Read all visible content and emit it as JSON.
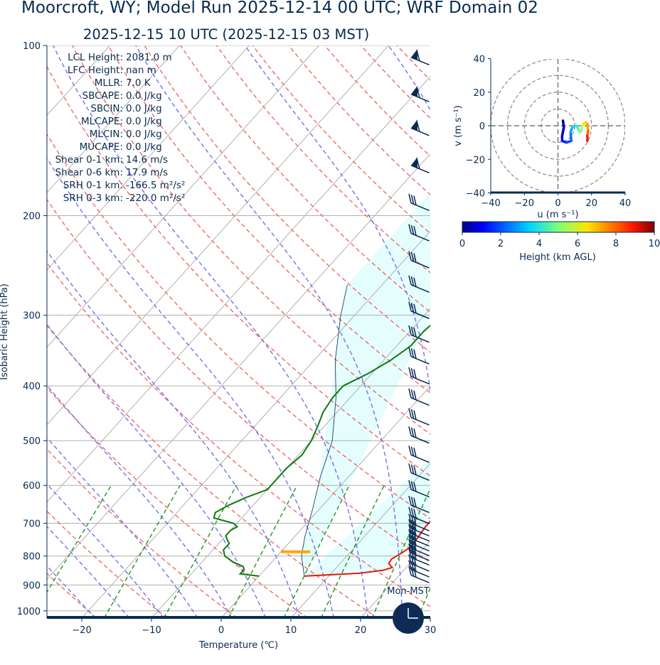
{
  "header": {
    "title": "Moorcroft, WY; Model Run 2025-12-14 00 UTC; WRF Domain 02",
    "subtitle": "2025-12-15 10 UTC  (2025-12-15 03 MST)"
  },
  "stats": [
    {
      "label": "LCL Height:",
      "value": "2081.0 m"
    },
    {
      "label": "LFC Height:",
      "value": "nan m"
    },
    {
      "label": "MLLR:",
      "value": "7.0 K"
    },
    {
      "label": "SBCAPE:",
      "value": "0.0 J/kg"
    },
    {
      "label": "SBCIN:",
      "value": "0.0 J/kg"
    },
    {
      "label": "MLCAPE:",
      "value": "0.0 J/kg"
    },
    {
      "label": "MLCIN:",
      "value": "0.0 J/kg"
    },
    {
      "label": "MUCAPE:",
      "value": "0.0 J/kg"
    },
    {
      "label": "Shear 0-1 km:",
      "value": "14.6 m/s"
    },
    {
      "label": "Shear 0-6 km:",
      "value": "17.9 m/s"
    },
    {
      "label": "SRH 0-1 km:",
      "value": "-166.5 m²/s²"
    },
    {
      "label": "SRH 0-3 km:",
      "value": "-220.0 m²/s²"
    }
  ],
  "clock": {
    "label": "Mon-MST",
    "icon": "clock-icon"
  },
  "colors": {
    "navy": "#0a2a50",
    "temperature": "#e8160c",
    "dewpoint": "#0e7a0e",
    "dry_adiabat": "#ef6a6a",
    "moist_adiabat": "#7272ee",
    "mixing_ratio": "#2c9c2c",
    "isotherm": "#b0b0b0",
    "cape_shade": "#e4fdfd",
    "lcl_marker": "#ffa500"
  },
  "chart_data": [
    {
      "type": "line",
      "name": "skew-t",
      "xlabel": "Temperature (℃)",
      "ylabel": "Isobaric Height (hPa)",
      "xlim": [
        -25,
        30
      ],
      "ylim": [
        1030,
        100
      ],
      "log_y": true,
      "x_ticks": [
        -20,
        -10,
        0,
        10,
        20,
        30
      ],
      "y_ticks": [
        100,
        200,
        300,
        400,
        500,
        600,
        700,
        800,
        900,
        1000
      ],
      "series": [
        {
          "name": "",
          "role": "temperature",
          "points": [
            [
              6.5,
              868
            ],
            [
              14,
              858
            ],
            [
              17,
              848
            ],
            [
              18,
              838
            ],
            [
              17,
              825
            ],
            [
              16.8,
              810
            ],
            [
              17.5,
              790
            ],
            [
              18,
              770
            ],
            [
              17.7,
              730
            ],
            [
              17.5,
              710
            ],
            [
              17.5,
              690
            ],
            [
              17.5,
              670
            ],
            [
              16,
              650
            ],
            [
              15.5,
              630
            ],
            [
              15,
              610
            ],
            [
              14.5,
              590
            ],
            [
              13,
              560
            ],
            [
              11,
              530
            ],
            [
              9,
              500
            ],
            [
              7,
              470
            ],
            [
              5,
              440
            ],
            [
              3.5,
              400
            ],
            [
              1,
              350
            ],
            [
              -2.5,
              300
            ],
            [
              -4,
              275
            ],
            [
              -5.5,
              250
            ],
            [
              -4.5,
              225
            ],
            [
              -3,
              215
            ],
            [
              -2,
              200
            ],
            [
              3,
              170
            ],
            [
              8,
              150
            ],
            [
              12,
              130
            ],
            [
              14.5,
              115
            ],
            [
              19,
              100
            ]
          ]
        },
        {
          "name": "",
          "role": "dewpoint",
          "points": [
            [
              0,
              868
            ],
            [
              -3,
              860
            ],
            [
              -3,
              845
            ],
            [
              -3.5,
              835
            ],
            [
              -5.5,
              820
            ],
            [
              -7.5,
              800
            ],
            [
              -8.5,
              780
            ],
            [
              -8.5,
              770
            ],
            [
              -8.5,
              760
            ],
            [
              -9.5,
              745
            ],
            [
              -10,
              735
            ],
            [
              -10,
              720
            ],
            [
              -9.5,
              710
            ],
            [
              -10.5,
              700
            ],
            [
              -14,
              685
            ],
            [
              -14.5,
              670
            ],
            [
              -13.5,
              650
            ],
            [
              -12,
              630
            ],
            [
              -10,
              610
            ],
            [
              -10,
              590
            ],
            [
              -10,
              560
            ],
            [
              -9.5,
              530
            ],
            [
              -10,
              500
            ],
            [
              -11,
              470
            ],
            [
              -12,
              445
            ],
            [
              -12.5,
              420
            ],
            [
              -12.5,
              400
            ],
            [
              -10.5,
              380
            ],
            [
              -9,
              360
            ],
            [
              -8,
              340
            ],
            [
              -8,
              320
            ],
            [
              -7.5,
              300
            ],
            [
              -10,
              260
            ],
            [
              -10.5,
              240
            ],
            [
              -11,
              220
            ],
            [
              -11,
              200
            ],
            [
              -11.5,
              180
            ],
            [
              -12,
              165
            ],
            [
              -15,
              150
            ],
            [
              -13,
              135
            ],
            [
              -11,
              120
            ],
            [
              -8.5,
              100
            ]
          ]
        },
        {
          "name": "",
          "role": "parcel",
          "points": [
            [
              -25,
              265
            ],
            [
              -22,
              300
            ],
            [
              -17,
              360
            ],
            [
              -12,
              420
            ],
            [
              -7,
              500
            ],
            [
              -4,
              580
            ],
            [
              -1,
              660
            ],
            [
              1.5,
              740
            ],
            [
              3.5,
              800
            ],
            [
              6.5,
              868
            ]
          ]
        }
      ],
      "lcl": {
        "pressure": 786,
        "t_range": [
          0,
          4.2
        ]
      },
      "wind_barbs": [
        {
          "p": 105,
          "u": -0.4,
          "v": 0.4
        },
        {
          "p": 122,
          "u": -0.4,
          "v": 0.4
        },
        {
          "p": 140,
          "u": -0.4,
          "v": 0.4
        },
        {
          "p": 163,
          "u": -0.4,
          "v": 0.4
        },
        {
          "p": 190,
          "u": -0.5,
          "v": 0.25
        },
        {
          "p": 215,
          "u": -0.5,
          "v": 0.25
        },
        {
          "p": 240,
          "u": -0.5,
          "v": 0.25
        },
        {
          "p": 265,
          "u": -0.5,
          "v": 0.25
        },
        {
          "p": 295,
          "u": -0.5,
          "v": 0.25
        },
        {
          "p": 325,
          "u": -0.5,
          "v": 0.25
        },
        {
          "p": 355,
          "u": -0.5,
          "v": 0.25
        },
        {
          "p": 385,
          "u": -0.5,
          "v": 0.25
        },
        {
          "p": 420,
          "u": -0.5,
          "v": 0.25
        },
        {
          "p": 455,
          "u": -0.5,
          "v": 0.25
        },
        {
          "p": 490,
          "u": -0.5,
          "v": 0.25
        },
        {
          "p": 530,
          "u": -0.5,
          "v": 0.25
        },
        {
          "p": 570,
          "u": -0.5,
          "v": 0.2
        },
        {
          "p": 610,
          "u": -0.5,
          "v": 0.2
        },
        {
          "p": 650,
          "u": -0.5,
          "v": 0.2
        },
        {
          "p": 680,
          "u": -0.5,
          "v": 0.2
        },
        {
          "p": 700,
          "u": -0.5,
          "v": 0.2
        },
        {
          "p": 715,
          "u": -0.5,
          "v": 0.2
        },
        {
          "p": 730,
          "u": -0.5,
          "v": 0.2
        },
        {
          "p": 745,
          "u": -0.5,
          "v": 0.2
        },
        {
          "p": 760,
          "u": -0.5,
          "v": 0.2
        },
        {
          "p": 775,
          "u": -0.5,
          "v": 0.2
        },
        {
          "p": 790,
          "u": -0.5,
          "v": 0.2
        },
        {
          "p": 805,
          "u": -0.5,
          "v": 0.2
        },
        {
          "p": 825,
          "u": -0.5,
          "v": 0.2
        },
        {
          "p": 845,
          "u": -0.5,
          "v": 0.2
        },
        {
          "p": 865,
          "u": -0.5,
          "v": 0.2
        }
      ]
    },
    {
      "type": "line",
      "name": "hodograph",
      "xlabel": "u (m s⁻¹)",
      "ylabel": "v (m s⁻¹)",
      "xlim": [
        -40,
        40
      ],
      "ylim": [
        -40,
        40
      ],
      "ticks": [
        -40,
        -20,
        0,
        20,
        40
      ],
      "rings": [
        10,
        20,
        30,
        40
      ],
      "points": [
        [
          3,
          3
        ],
        [
          3.5,
          -1
        ],
        [
          2.5,
          -6
        ],
        [
          2.5,
          -9
        ],
        [
          5,
          -10
        ],
        [
          8,
          -9
        ],
        [
          7.5,
          -4
        ],
        [
          8.5,
          -1
        ],
        [
          11,
          0
        ],
        [
          12,
          -2
        ],
        [
          13,
          -4
        ],
        [
          14,
          -3
        ],
        [
          14.5,
          0
        ],
        [
          15,
          1
        ],
        [
          16.5,
          2
        ],
        [
          17.5,
          1
        ],
        [
          18,
          -3
        ],
        [
          17.5,
          -6
        ],
        [
          17.5,
          -9
        ]
      ],
      "colorbar": {
        "label": "Height (km AGL)",
        "min": 0,
        "max": 10,
        "ticks": [
          0,
          2,
          4,
          6,
          8,
          10
        ]
      }
    }
  ]
}
